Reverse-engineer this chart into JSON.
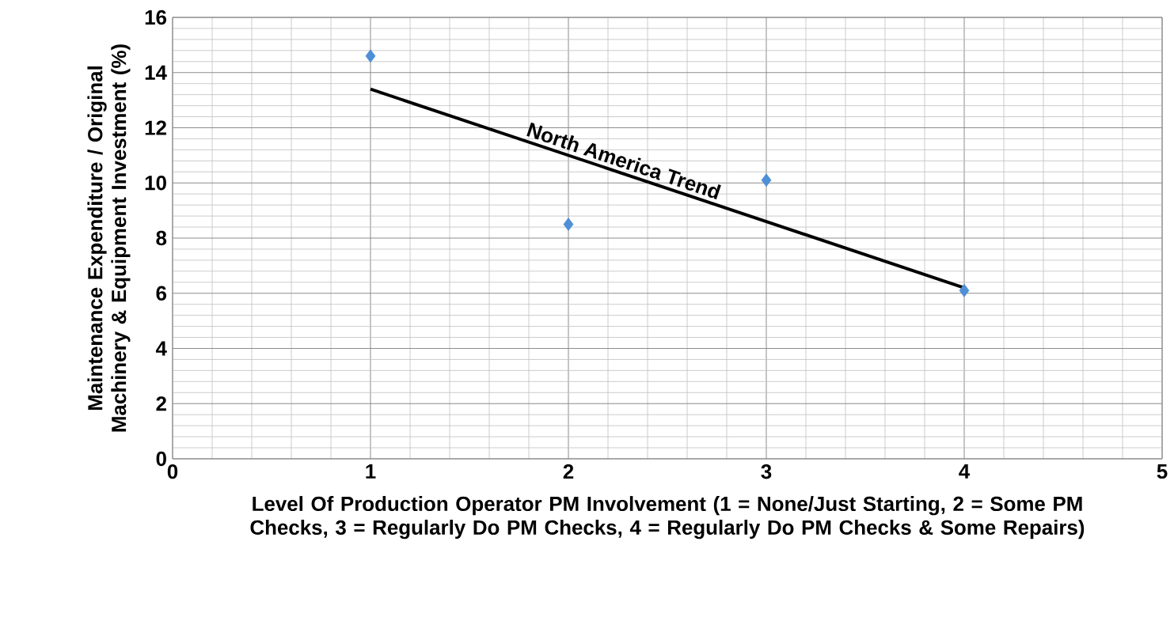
{
  "chart_data": {
    "type": "scatter",
    "xlabel": "Level Of Production Operator PM Involvement (1 = None/Just Starting, 2 = Some PM Checks, 3 = Regularly Do PM Checks, 4 = Regularly Do PM Checks & Some Repairs)",
    "ylabel": "Maintenance Expenditure  / Original Machinery & Equipment  Investment (%)",
    "xlim": [
      0,
      5
    ],
    "ylim": [
      0,
      16
    ],
    "xticks": [
      0,
      1,
      2,
      3,
      4,
      5
    ],
    "yticks": [
      0,
      2,
      4,
      6,
      8,
      10,
      12,
      14,
      16
    ],
    "grid": true,
    "series": [
      {
        "color": "#4f8fd6",
        "marker": "diamond",
        "x": [
          1,
          2,
          3,
          4
        ],
        "values": [
          14.6,
          8.5,
          10.1,
          6.1
        ]
      },
      {
        "type": "line",
        "name": "North America Trend",
        "color": "#000000",
        "marker": "none",
        "line_style": "solid",
        "x": [
          1,
          4
        ],
        "values": [
          13.4,
          6.2
        ]
      }
    ]
  }
}
